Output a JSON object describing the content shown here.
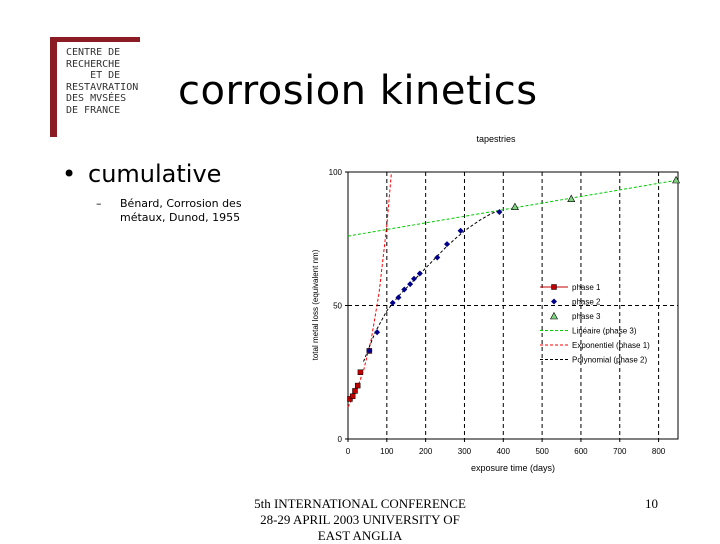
{
  "slide": {
    "title": "corrosion kinetics",
    "bullet": "cumulative",
    "sub_dash": "–",
    "sub_item": "Bénard, Corrosion des métaux, Dunod, 1955",
    "footer": "5th INTERNATIONAL CONFERENCE 28-29 APRIL 2003 UNIVERSITY OF EAST ANGLIA",
    "page_number": "10"
  },
  "logo": {
    "text": "CENTRE DE\nRECHERCHE\n    ET DE\nRESTAVRATION\nDES MVSÉES\nDE FRANCE",
    "color": "#8b1c24"
  },
  "chart_data": {
    "type": "scatter",
    "title": "tapestries",
    "xlabel": "exposure time (days)",
    "ylabel": "total metal loss (equivalent nm)",
    "xlim": [
      0,
      850
    ],
    "ylim": [
      0,
      100
    ],
    "xticks": [
      "0",
      "100",
      "200",
      "300",
      "400",
      "500",
      "600",
      "700",
      "800"
    ],
    "yticks": [
      "0",
      "50",
      "100"
    ],
    "grid": "dashed vertical at x ticks, dashed horizontal at 50",
    "legend_position": "right",
    "series": [
      {
        "name": "phase 1",
        "marker": "square",
        "color": "#c00000",
        "x": [
          5,
          12,
          18,
          25,
          32,
          55
        ],
        "y": [
          15,
          16,
          18,
          20,
          25,
          33
        ]
      },
      {
        "name": "phase 2",
        "marker": "diamond",
        "color": "#00008b",
        "x": [
          55,
          75,
          115,
          130,
          145,
          160,
          170,
          185,
          230,
          255,
          290,
          390
        ],
        "y": [
          33,
          40,
          51,
          53,
          56,
          58,
          60,
          62,
          68,
          73,
          78,
          85
        ]
      },
      {
        "name": "phase 3",
        "marker": "triangle",
        "color": "#2e8b57",
        "x": [
          430,
          575,
          845
        ],
        "y": [
          87,
          90,
          97
        ]
      }
    ],
    "trendlines": [
      {
        "name": "Linéaire (phase 3)",
        "color": "#00cc00",
        "x": [
          0,
          850
        ],
        "y": [
          76,
          97
        ]
      },
      {
        "name": "Exponentiel (phase 1)",
        "color": "#ff0000",
        "x": [
          0,
          20,
          40,
          60,
          80,
          100,
          112
        ],
        "y": [
          12,
          17.5,
          25.6,
          37.4,
          54.7,
          80,
          100
        ]
      },
      {
        "name": "Polynomial (phase 2)",
        "color": "#000000",
        "x": [
          40,
          70,
          100,
          130,
          160,
          190,
          220,
          250,
          280,
          310,
          340,
          370,
          390
        ],
        "y": [
          29,
          40,
          48,
          53.5,
          58,
          62.5,
          67,
          71.5,
          75.5,
          79,
          82,
          84.5,
          85.5
        ]
      }
    ]
  }
}
